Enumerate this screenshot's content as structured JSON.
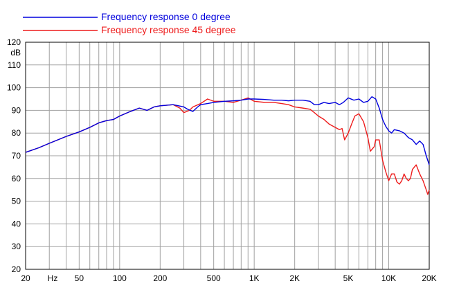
{
  "chart_data": {
    "type": "line",
    "xscale": "log",
    "xlim": [
      20,
      20000
    ],
    "ylim": [
      20,
      120
    ],
    "grid": true,
    "legend_position": "top-left",
    "ylabel": "dB",
    "xlabel": "Hz",
    "y_ticks": [
      "20",
      "30",
      "40",
      "50",
      "60",
      "70",
      "80",
      "90",
      "100",
      "110",
      "120"
    ],
    "x_ticks": [
      {
        "value": 20,
        "label": "20"
      },
      {
        "value": 50,
        "label": "50"
      },
      {
        "value": 100,
        "label": "100"
      },
      {
        "value": 200,
        "label": "200"
      },
      {
        "value": 500,
        "label": "500"
      },
      {
        "value": 1000,
        "label": "1K"
      },
      {
        "value": 2000,
        "label": "2K"
      },
      {
        "value": 5000,
        "label": "5K"
      },
      {
        "value": 10000,
        "label": "10K"
      },
      {
        "value": 20000,
        "label": "20K"
      }
    ],
    "series": [
      {
        "name": "Frequency response 0 degree",
        "color": "#0000dd",
        "points": [
          [
            20,
            71.5
          ],
          [
            25,
            73.5
          ],
          [
            30,
            75.5
          ],
          [
            40,
            78.5
          ],
          [
            50,
            80.5
          ],
          [
            60,
            82.5
          ],
          [
            70,
            84.5
          ],
          [
            80,
            85.5
          ],
          [
            90,
            86
          ],
          [
            100,
            87.5
          ],
          [
            120,
            89.5
          ],
          [
            140,
            91
          ],
          [
            160,
            90
          ],
          [
            180,
            91.5
          ],
          [
            200,
            92
          ],
          [
            250,
            92.5
          ],
          [
            300,
            91.5
          ],
          [
            320,
            90.5
          ],
          [
            350,
            89.5
          ],
          [
            380,
            91.5
          ],
          [
            400,
            92.5
          ],
          [
            450,
            93
          ],
          [
            500,
            93.5
          ],
          [
            600,
            94
          ],
          [
            700,
            94.2
          ],
          [
            800,
            94.5
          ],
          [
            900,
            95
          ],
          [
            1000,
            95
          ],
          [
            1200,
            94.8
          ],
          [
            1400,
            94.5
          ],
          [
            1600,
            94.5
          ],
          [
            1800,
            94.2
          ],
          [
            2000,
            94.5
          ],
          [
            2300,
            94.5
          ],
          [
            2600,
            94
          ],
          [
            2800,
            92.5
          ],
          [
            3000,
            92.5
          ],
          [
            3300,
            93.5
          ],
          [
            3600,
            93
          ],
          [
            4000,
            93.5
          ],
          [
            4300,
            92.5
          ],
          [
            4600,
            93.5
          ],
          [
            5000,
            95.5
          ],
          [
            5500,
            94.5
          ],
          [
            6000,
            95
          ],
          [
            6500,
            93.5
          ],
          [
            7000,
            94
          ],
          [
            7500,
            96
          ],
          [
            8000,
            95
          ],
          [
            8500,
            91
          ],
          [
            9000,
            86
          ],
          [
            9500,
            83
          ],
          [
            10000,
            81
          ],
          [
            10500,
            80
          ],
          [
            11000,
            81.5
          ],
          [
            12000,
            81
          ],
          [
            13000,
            80
          ],
          [
            14000,
            78
          ],
          [
            15000,
            77
          ],
          [
            16000,
            75
          ],
          [
            17000,
            76.5
          ],
          [
            18000,
            75
          ],
          [
            19000,
            70
          ],
          [
            20000,
            66
          ]
        ]
      },
      {
        "name": "Frequency response 45 degree",
        "color": "#ee1c1c",
        "points": [
          [
            20,
            71.5
          ],
          [
            25,
            73.5
          ],
          [
            30,
            75.5
          ],
          [
            40,
            78.5
          ],
          [
            50,
            80.5
          ],
          [
            60,
            82.5
          ],
          [
            70,
            84.5
          ],
          [
            80,
            85.5
          ],
          [
            90,
            86
          ],
          [
            100,
            87.5
          ],
          [
            120,
            89.5
          ],
          [
            140,
            91
          ],
          [
            160,
            90
          ],
          [
            180,
            91.5
          ],
          [
            200,
            92
          ],
          [
            250,
            92.5
          ],
          [
            280,
            91
          ],
          [
            300,
            89
          ],
          [
            330,
            90
          ],
          [
            350,
            91.5
          ],
          [
            400,
            93
          ],
          [
            450,
            95
          ],
          [
            500,
            94
          ],
          [
            600,
            94
          ],
          [
            700,
            93.5
          ],
          [
            800,
            94.5
          ],
          [
            900,
            95.5
          ],
          [
            1000,
            94
          ],
          [
            1200,
            93.5
          ],
          [
            1400,
            93.5
          ],
          [
            1600,
            93
          ],
          [
            1800,
            92.5
          ],
          [
            2000,
            91.5
          ],
          [
            2300,
            91
          ],
          [
            2600,
            90.5
          ],
          [
            2800,
            89
          ],
          [
            3000,
            87.5
          ],
          [
            3300,
            86
          ],
          [
            3600,
            84
          ],
          [
            4000,
            82.5
          ],
          [
            4300,
            81.5
          ],
          [
            4500,
            82
          ],
          [
            4700,
            77
          ],
          [
            5000,
            80
          ],
          [
            5300,
            84
          ],
          [
            5600,
            87.5
          ],
          [
            6000,
            88.5
          ],
          [
            6500,
            85
          ],
          [
            7000,
            78
          ],
          [
            7300,
            72
          ],
          [
            7800,
            74
          ],
          [
            8000,
            77
          ],
          [
            8500,
            77
          ],
          [
            9000,
            68
          ],
          [
            9500,
            63
          ],
          [
            10000,
            59
          ],
          [
            10500,
            62
          ],
          [
            11000,
            62
          ],
          [
            11500,
            58.5
          ],
          [
            12000,
            57.5
          ],
          [
            12500,
            59
          ],
          [
            13000,
            62
          ],
          [
            13500,
            60
          ],
          [
            14000,
            59
          ],
          [
            14500,
            60
          ],
          [
            15000,
            64
          ],
          [
            16000,
            66
          ],
          [
            17000,
            62
          ],
          [
            18000,
            59
          ],
          [
            19000,
            55
          ],
          [
            19500,
            53
          ],
          [
            20000,
            55
          ]
        ]
      }
    ]
  }
}
